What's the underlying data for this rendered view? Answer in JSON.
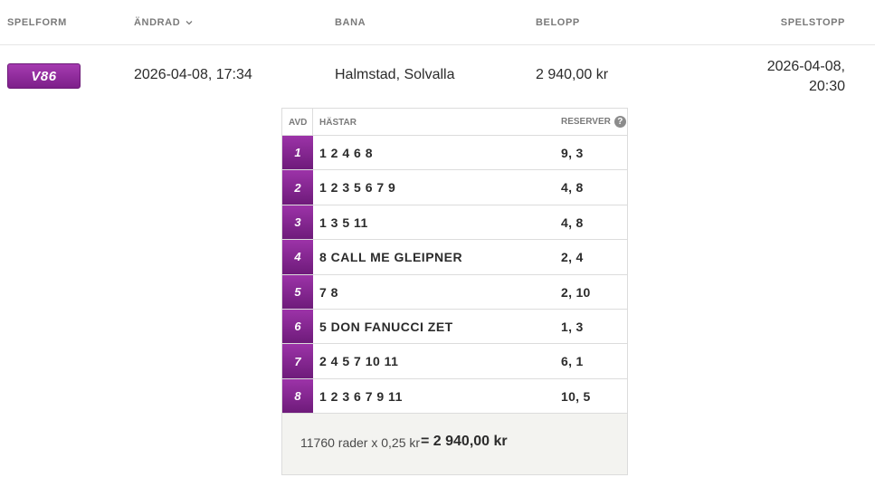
{
  "columns": {
    "spelform": "SPELFORM",
    "andrad": "ÄNDRAD",
    "bana": "BANA",
    "belopp": "BELOPP",
    "spelstopp": "SPELSTOPP"
  },
  "bet": {
    "game_type": "V86",
    "changed": "2026-04-08, 17:34",
    "track": "Halmstad, Solvalla",
    "amount": "2 940,00 kr",
    "stop_date": "2026-04-08,",
    "stop_time": "20:30"
  },
  "ticket": {
    "headers": {
      "avd": "AVD",
      "hastar": "HÄSTAR",
      "reserver": "RESERVER",
      "help": "?"
    },
    "legs": [
      {
        "avd": "1",
        "horses": "1 2 4 6 8",
        "reserves": "9, 3"
      },
      {
        "avd": "2",
        "horses": "1 2 3 5 6 7 9",
        "reserves": "4, 8"
      },
      {
        "avd": "3",
        "horses": "1 3 5 11",
        "reserves": "4, 8"
      },
      {
        "avd": "4",
        "horses": "8  CALL ME GLEIPNER",
        "reserves": "2, 4"
      },
      {
        "avd": "5",
        "horses": "7 8",
        "reserves": "2, 10"
      },
      {
        "avd": "6",
        "horses": "5  DON FANUCCI ZET",
        "reserves": "1, 3"
      },
      {
        "avd": "7",
        "horses": "2 4 5 7 10 11",
        "reserves": "6, 1"
      },
      {
        "avd": "8",
        "horses": "1 2 3 6 7 9 11",
        "reserves": "10, 5"
      }
    ],
    "summary": "11760 rader x 0,25 kr",
    "total": "= 2 940,00 kr"
  },
  "colors": {
    "accent": "#8a2598",
    "border": "#dcdcdc",
    "footer_bg": "#f3f3f0"
  }
}
